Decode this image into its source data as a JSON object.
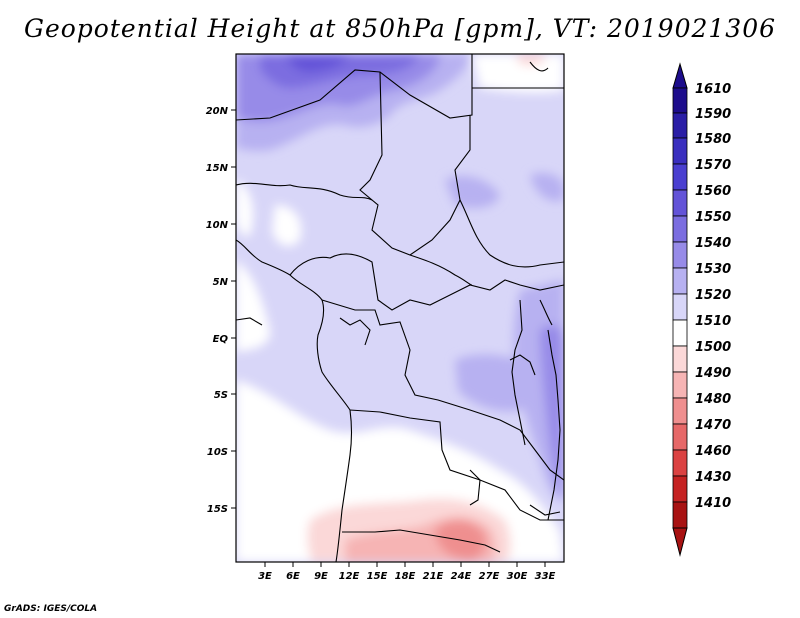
{
  "title": "Geopotential Height at 850hPa [gpm], VT: 2019021306",
  "footer": "GrADS: IGES/COLA",
  "map": {
    "lat_labels": [
      "20N",
      "15N",
      "10N",
      "5N",
      "EQ",
      "5S",
      "10S",
      "15S"
    ],
    "lon_labels": [
      "3E",
      "6E",
      "9E",
      "12E",
      "15E",
      "18E",
      "21E",
      "24E",
      "27E",
      "30E",
      "33E"
    ]
  },
  "colorbar": {
    "levels": [
      "1610",
      "1590",
      "1580",
      "1570",
      "1560",
      "1550",
      "1540",
      "1530",
      "1520",
      "1510",
      "1500",
      "1490",
      "1480",
      "1470",
      "1460",
      "1430",
      "1410"
    ],
    "colors": [
      "#1d0d8c",
      "#2a1ea6",
      "#3a2fbf",
      "#4a3fd0",
      "#6353d8",
      "#7b6de0",
      "#978be8",
      "#b7b1f1",
      "#d8d6f8",
      "#ffffff",
      "#fbd8d8",
      "#f6b4b4",
      "#ef8f8f",
      "#e66868",
      "#db4242",
      "#c52222",
      "#a81212"
    ]
  }
}
